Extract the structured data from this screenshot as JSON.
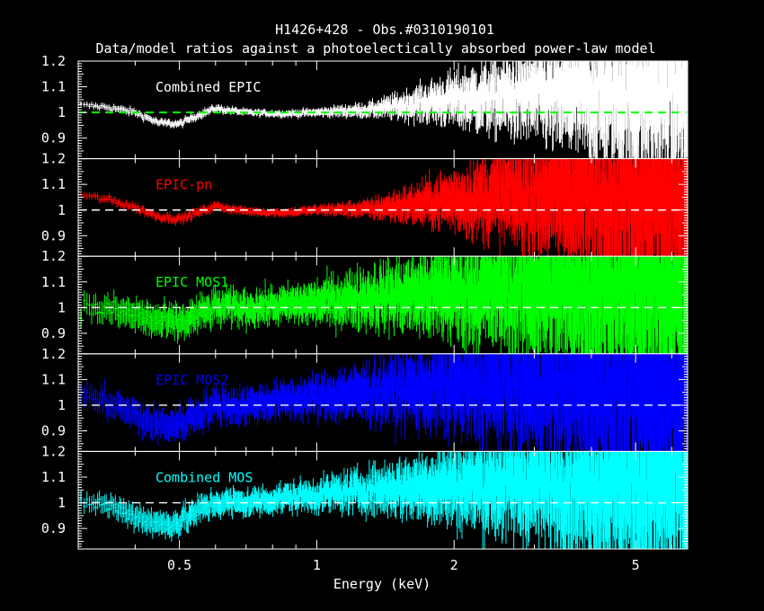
{
  "chart_data": {
    "type": "scatter",
    "title": "H1426+428 - Obs.#0310190101",
    "subtitle": "Data/model ratios against a photoelectically absorbed power-law model",
    "xlabel": "Energy (keV)",
    "ylabel": "",
    "x_scale": "log",
    "xlim": [
      0.3,
      6.5
    ],
    "x_ticks": [
      0.5,
      1,
      2,
      5
    ],
    "x_tick_labels": [
      "0.5",
      "1",
      "2",
      "5"
    ],
    "ylim": [
      0.82,
      1.2
    ],
    "y_ticks": [
      0.9,
      1,
      1.1,
      1.2
    ],
    "y_tick_labels": [
      "0.9",
      "1",
      "1.1",
      "1.2"
    ],
    "model_line": 1,
    "grid": false,
    "legend": "none",
    "panels": [
      {
        "label": "Combined EPIC",
        "color": "#ffffff",
        "line_color": "#00ff00",
        "profile": {
          "x": [
            0.3,
            0.35,
            0.4,
            0.45,
            0.5,
            0.55,
            0.6,
            0.7,
            0.85,
            1.0,
            1.3,
            1.6,
            2.0,
            3.0,
            4.0,
            5.0,
            6.5
          ],
          "ratio": [
            1.03,
            1.02,
            1.0,
            0.96,
            0.955,
            0.99,
            1.015,
            1.0,
            0.995,
            1.0,
            1.01,
            1.03,
            1.05,
            1.07,
            1.08,
            1.08,
            1.09
          ],
          "error": [
            0.01,
            0.012,
            0.012,
            0.012,
            0.012,
            0.012,
            0.012,
            0.01,
            0.01,
            0.012,
            0.02,
            0.04,
            0.07,
            0.12,
            0.18,
            0.22,
            0.26
          ]
        }
      },
      {
        "label": "EPIC-pn",
        "color": "#ff0000",
        "line_color": "#ffffff",
        "profile": {
          "x": [
            0.3,
            0.35,
            0.4,
            0.45,
            0.5,
            0.55,
            0.6,
            0.7,
            0.85,
            1.0,
            1.3,
            1.6,
            2.0,
            3.0,
            4.0,
            5.0,
            6.5
          ],
          "ratio": [
            1.06,
            1.04,
            1.01,
            0.975,
            0.965,
            0.99,
            1.015,
            0.995,
            0.99,
            1.0,
            1.005,
            1.02,
            1.04,
            1.06,
            1.07,
            1.07,
            1.08
          ],
          "error": [
            0.012,
            0.014,
            0.014,
            0.014,
            0.014,
            0.014,
            0.014,
            0.012,
            0.012,
            0.014,
            0.025,
            0.05,
            0.08,
            0.15,
            0.22,
            0.27,
            0.3
          ]
        }
      },
      {
        "label": "EPIC MOS1",
        "color": "#00ff00",
        "line_color": "#ffffff",
        "profile": {
          "x": [
            0.3,
            0.35,
            0.4,
            0.45,
            0.5,
            0.55,
            0.6,
            0.7,
            0.85,
            1.0,
            1.3,
            1.6,
            2.0,
            3.0,
            4.0,
            5.0,
            6.5
          ],
          "ratio": [
            1.0,
            0.99,
            0.97,
            0.945,
            0.94,
            0.97,
            1.0,
            1.0,
            1.01,
            1.02,
            1.04,
            1.05,
            1.06,
            1.07,
            1.08,
            1.08,
            1.08
          ],
          "error": [
            0.04,
            0.045,
            0.05,
            0.05,
            0.05,
            0.05,
            0.05,
            0.05,
            0.05,
            0.06,
            0.08,
            0.1,
            0.13,
            0.18,
            0.23,
            0.27,
            0.3
          ]
        }
      },
      {
        "label": "EPIC MOS2",
        "color": "#0000ff",
        "line_color": "#ffffff",
        "profile": {
          "x": [
            0.3,
            0.35,
            0.4,
            0.45,
            0.5,
            0.55,
            0.6,
            0.7,
            0.85,
            1.0,
            1.3,
            1.6,
            2.0,
            3.0,
            4.0,
            5.0,
            6.5
          ],
          "ratio": [
            1.04,
            1.01,
            0.96,
            0.92,
            0.93,
            0.97,
            1.0,
            1.0,
            1.02,
            1.03,
            1.05,
            1.06,
            1.07,
            1.08,
            1.08,
            1.08,
            1.08
          ],
          "error": [
            0.04,
            0.045,
            0.05,
            0.05,
            0.05,
            0.05,
            0.05,
            0.05,
            0.05,
            0.06,
            0.08,
            0.1,
            0.13,
            0.18,
            0.23,
            0.27,
            0.3
          ]
        }
      },
      {
        "label": "Combined MOS",
        "color": "#00ffff",
        "line_color": "#ffffff",
        "profile": {
          "x": [
            0.3,
            0.35,
            0.4,
            0.45,
            0.5,
            0.55,
            0.6,
            0.7,
            0.85,
            1.0,
            1.3,
            1.6,
            2.0,
            3.0,
            4.0,
            5.0,
            6.5
          ],
          "ratio": [
            1.01,
            0.99,
            0.95,
            0.915,
            0.925,
            0.97,
            1.0,
            1.0,
            1.02,
            1.03,
            1.05,
            1.06,
            1.07,
            1.08,
            1.08,
            1.08,
            1.08
          ],
          "error": [
            0.03,
            0.035,
            0.04,
            0.04,
            0.04,
            0.04,
            0.04,
            0.04,
            0.04,
            0.045,
            0.06,
            0.08,
            0.11,
            0.16,
            0.21,
            0.25,
            0.28
          ]
        }
      }
    ]
  }
}
